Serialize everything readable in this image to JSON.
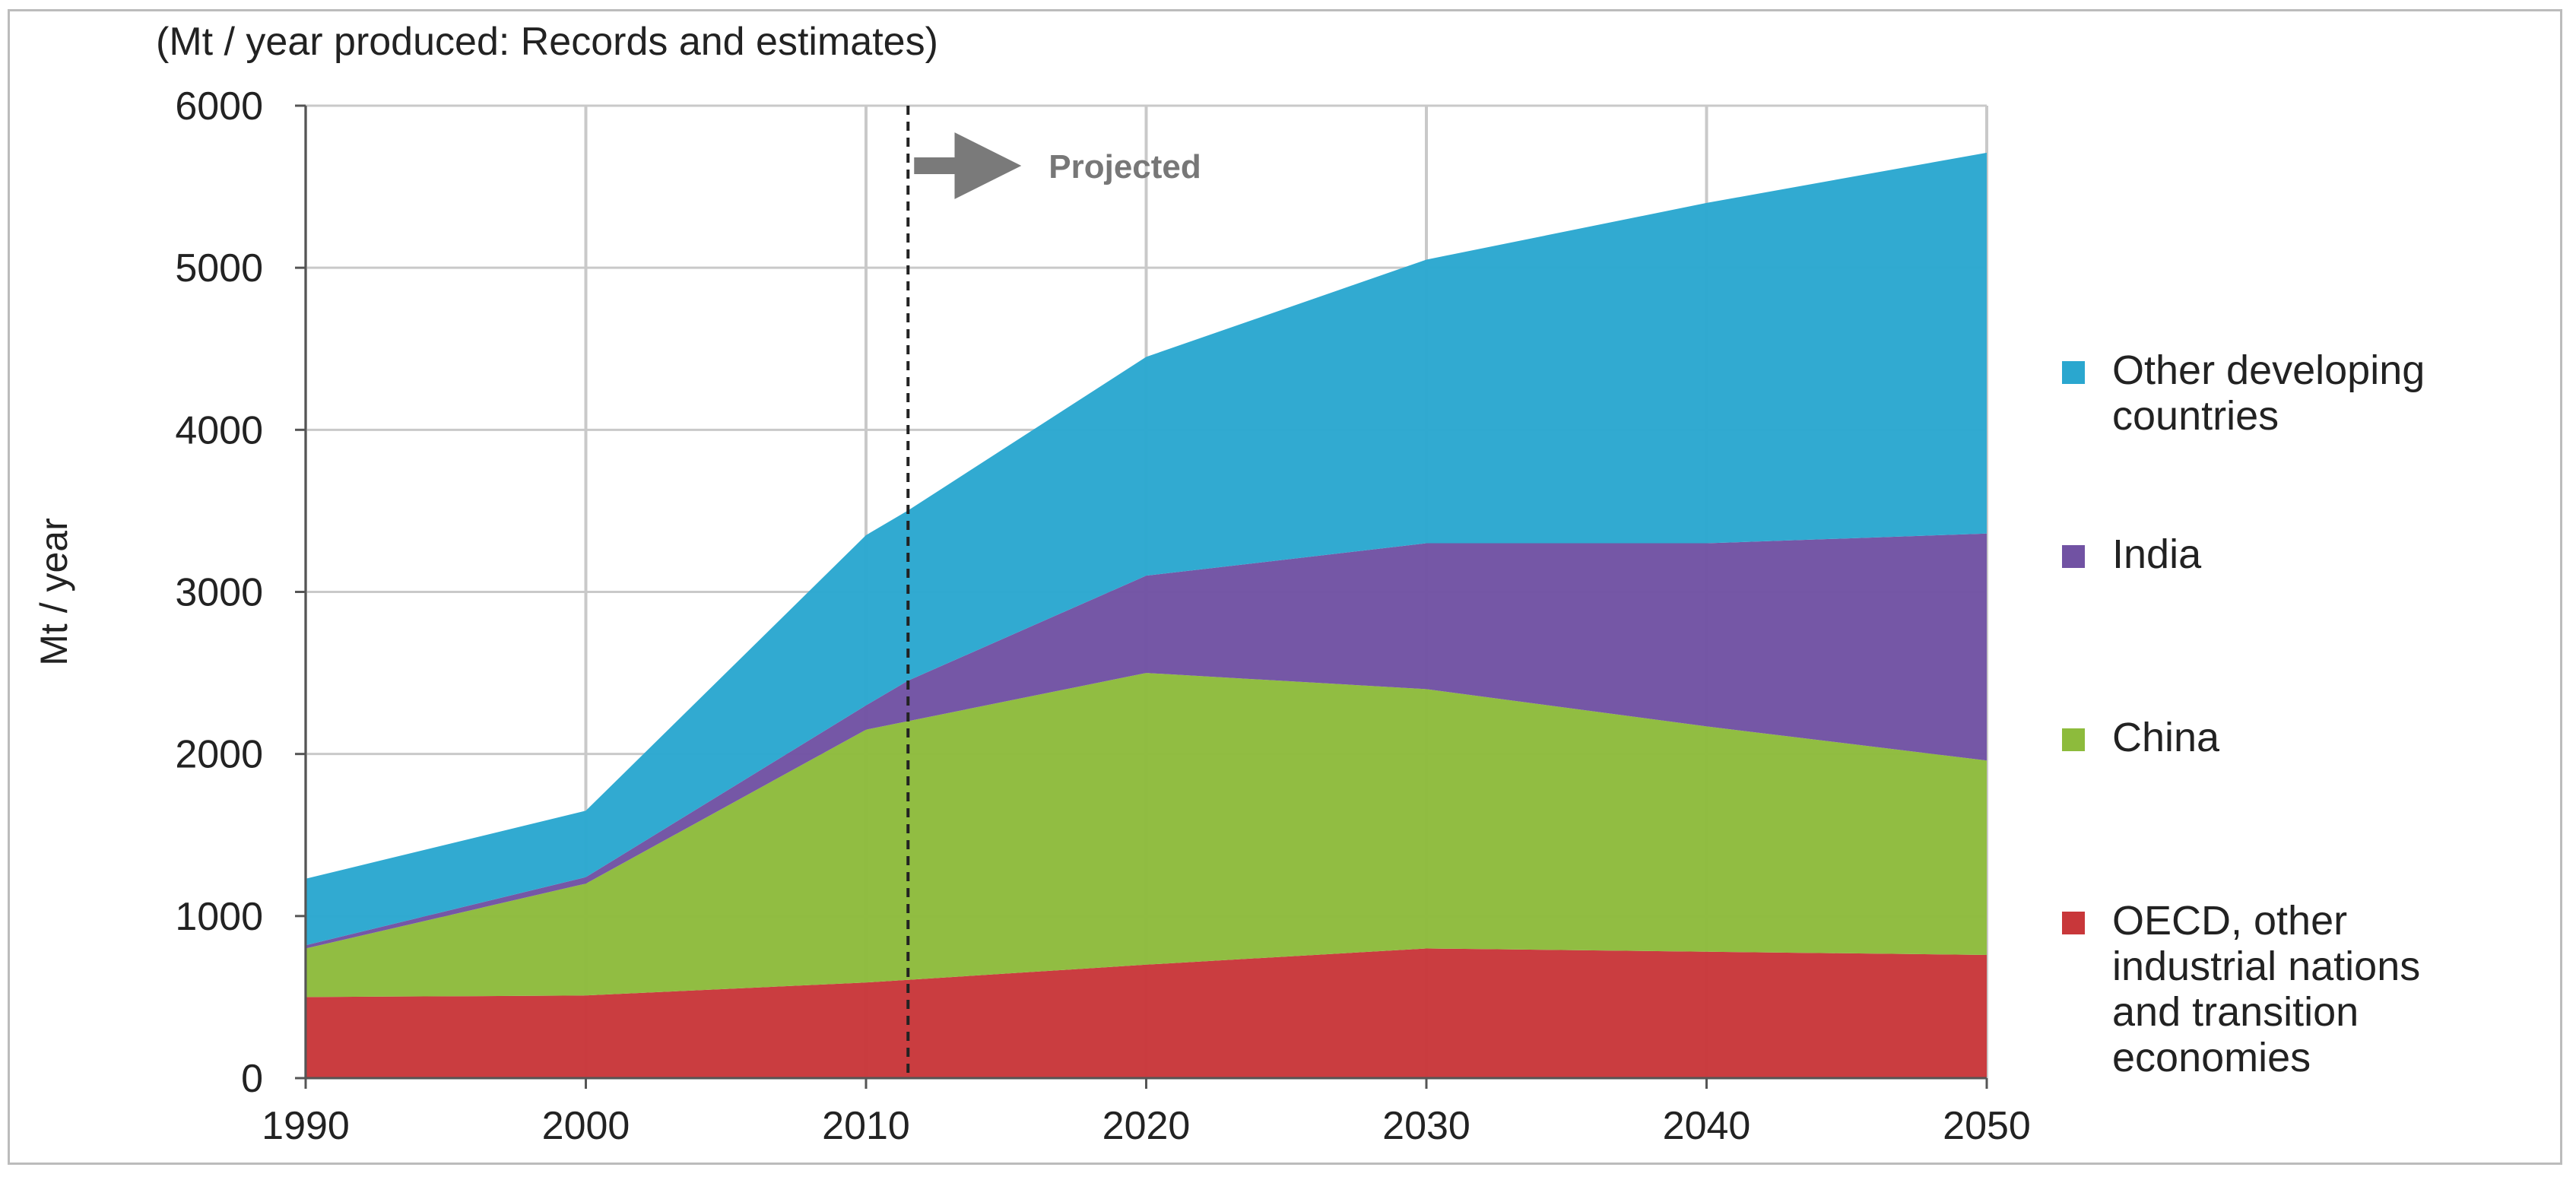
{
  "chart_data": {
    "type": "area",
    "stacked": true,
    "title": "(Mt / year produced: Records and estimates)",
    "xlabel": "",
    "ylabel": "Mt / year",
    "x": [
      1990,
      2000,
      2010,
      2020,
      2030,
      2040,
      2050
    ],
    "xlim": [
      1990,
      2050
    ],
    "ylim": [
      0,
      6000
    ],
    "yticks": [
      0,
      1000,
      2000,
      3000,
      4000,
      5000,
      6000
    ],
    "grid": true,
    "legend_position": "right",
    "projection_start": 2011.5,
    "annotation": "Projected",
    "series": [
      {
        "name": "OECD, other industrial nations and transition economies",
        "color": "#c8373a",
        "x": [
          1990,
          2000,
          2010,
          2020,
          2030,
          2040,
          2050
        ],
        "values": [
          500,
          510,
          590,
          700,
          800,
          780,
          760
        ]
      },
      {
        "name": "China",
        "color": "#8dbb3c",
        "x": [
          1990,
          2000,
          2010,
          2020,
          2030,
          2040,
          2050
        ],
        "values": [
          300,
          690,
          1560,
          1800,
          1600,
          1390,
          1200
        ]
      },
      {
        "name": "India",
        "color": "#7152a3",
        "x": [
          1990,
          2000,
          2010,
          2011.5,
          2020,
          2030,
          2040,
          2050
        ],
        "values": [
          20,
          40,
          150,
          250,
          600,
          900,
          1130,
          1400
        ]
      },
      {
        "name": "Other developing countries",
        "color": "#2aa7cf",
        "x": [
          1990,
          2000,
          2010,
          2011.5,
          2020,
          2030,
          2040,
          2050
        ],
        "values": [
          410,
          410,
          1050,
          1050,
          1350,
          1750,
          2100,
          2350
        ]
      }
    ],
    "legend": [
      {
        "lines": [
          "Other developing",
          "countries"
        ],
        "color": "#2aa7cf"
      },
      {
        "lines": [
          "India"
        ],
        "color": "#7152a3"
      },
      {
        "lines": [
          "China"
        ],
        "color": "#8dbb3c"
      },
      {
        "lines": [
          "OECD, other",
          "industrial nations",
          "and transition",
          "economies"
        ],
        "color": "#c8373a"
      }
    ]
  }
}
